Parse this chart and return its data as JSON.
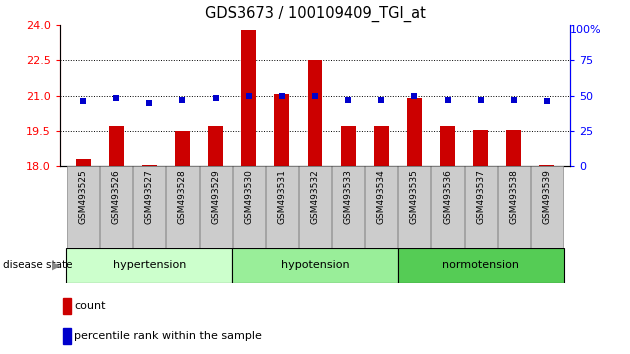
{
  "title": "GDS3673 / 100109409_TGI_at",
  "samples": [
    "GSM493525",
    "GSM493526",
    "GSM493527",
    "GSM493528",
    "GSM493529",
    "GSM493530",
    "GSM493531",
    "GSM493532",
    "GSM493533",
    "GSM493534",
    "GSM493535",
    "GSM493536",
    "GSM493537",
    "GSM493538",
    "GSM493539"
  ],
  "count_values": [
    18.3,
    19.7,
    18.05,
    19.5,
    19.7,
    23.8,
    21.05,
    22.5,
    19.7,
    19.7,
    20.9,
    19.7,
    19.55,
    19.55,
    18.05
  ],
  "percentile_values": [
    46,
    48,
    45,
    47,
    48,
    50,
    50,
    50,
    47,
    47,
    50,
    47,
    47,
    47,
    46
  ],
  "ylim_left": [
    18,
    24
  ],
  "ylim_right": [
    0,
    100
  ],
  "yticks_left": [
    18,
    19.5,
    21,
    22.5,
    24
  ],
  "yticks_right": [
    0,
    25,
    50,
    75,
    100
  ],
  "groups": [
    {
      "label": "hypertension",
      "start": 0,
      "end": 5,
      "color": "#ccffcc"
    },
    {
      "label": "hypotension",
      "start": 5,
      "end": 10,
      "color": "#99ee99"
    },
    {
      "label": "normotension",
      "start": 10,
      "end": 15,
      "color": "#55cc55"
    }
  ],
  "bar_color": "#cc0000",
  "dot_color": "#0000cc",
  "background_color": "#ffffff",
  "tick_bg": "#cccccc",
  "grid_yticks": [
    19.5,
    21,
    22.5
  ],
  "group_label": "disease state",
  "legend_count": "count",
  "legend_pct": "percentile rank within the sample",
  "right_top_label": "100%"
}
